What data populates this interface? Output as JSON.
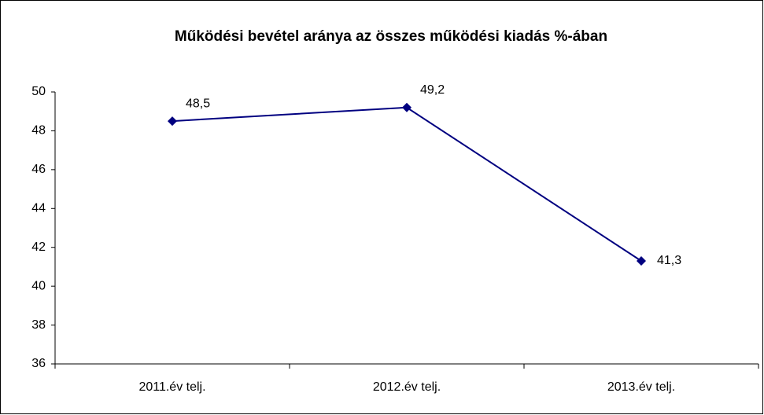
{
  "chart_data": {
    "type": "line",
    "title": "Működési bevétel aránya az összes működési kiadás %-ában",
    "categories": [
      "2011.év telj.",
      "2012.év telj.",
      "2013.év telj."
    ],
    "values": [
      48.5,
      49.2,
      41.3
    ],
    "value_labels": [
      "48,5",
      "49,2",
      "41,3"
    ],
    "color": "#000080",
    "ylim": [
      36,
      50
    ],
    "yticks": [
      36,
      38,
      40,
      42,
      44,
      46,
      48,
      50
    ],
    "grid": false
  }
}
